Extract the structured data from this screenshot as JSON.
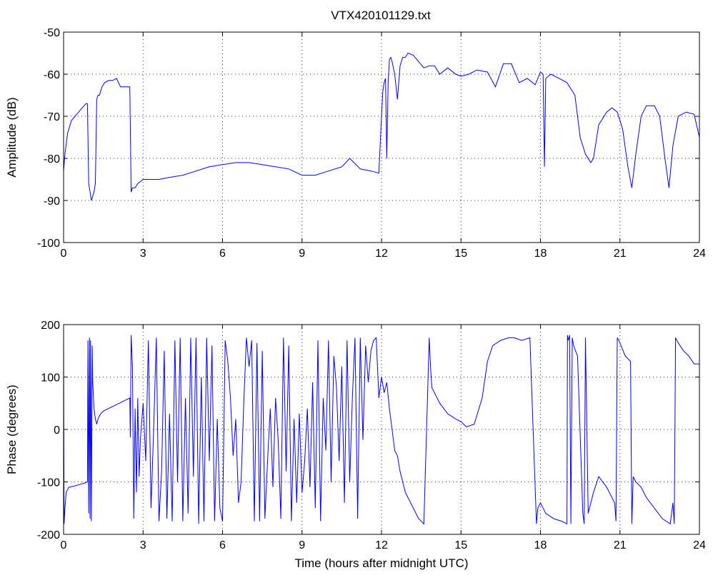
{
  "figure": {
    "title": "VTX420101129.txt"
  },
  "chart_data": [
    {
      "type": "line",
      "title": "VTX420101129.txt",
      "xlabel": "",
      "ylabel": "Amplitude (dB)",
      "xlim": [
        0,
        24
      ],
      "ylim": [
        -100,
        -50
      ],
      "xticks": [
        0,
        3,
        6,
        9,
        12,
        15,
        18,
        21,
        24
      ],
      "yticks": [
        -100,
        -90,
        -80,
        -70,
        -60,
        -50
      ],
      "grid": true,
      "color": "#0000ff",
      "series": [
        {
          "x": [
            0.0,
            0.05,
            0.15,
            0.3,
            0.5,
            0.7,
            0.85,
            0.9,
            0.95,
            1.0,
            1.05,
            1.1,
            1.15,
            1.2,
            1.25,
            1.3,
            1.35,
            1.45,
            1.55,
            1.7,
            1.85,
            2.0,
            2.15,
            2.3,
            2.4,
            2.45,
            2.5,
            2.55,
            2.6,
            2.7,
            2.8,
            3.0,
            3.3,
            3.6,
            4.0,
            4.5,
            5.0,
            5.5,
            6.0,
            6.5,
            7.0,
            7.5,
            8.0,
            8.5,
            9.0,
            9.5,
            10.0,
            10.5,
            10.8,
            11.2,
            11.6,
            11.9,
            12.0,
            12.05,
            12.1,
            12.15,
            12.2,
            12.25,
            12.3,
            12.35,
            12.4,
            12.5,
            12.6,
            12.7,
            12.8,
            12.9,
            13.0,
            13.2,
            13.4,
            13.6,
            13.8,
            14.0,
            14.2,
            14.5,
            14.8,
            15.0,
            15.3,
            15.6,
            16.0,
            16.3,
            16.6,
            16.9,
            17.2,
            17.5,
            17.8,
            18.0,
            18.1,
            18.15,
            18.2,
            18.4,
            18.7,
            19.0,
            19.3,
            19.5,
            19.7,
            19.9,
            20.0,
            20.2,
            20.5,
            20.7,
            20.9,
            21.1,
            21.3,
            21.45,
            21.6,
            21.8,
            22.0,
            22.3,
            22.5,
            22.7,
            22.85,
            23.0,
            23.2,
            23.5,
            23.8,
            24.0
          ],
          "values": [
            -83,
            -79,
            -74,
            -71,
            -69.5,
            -68,
            -67,
            -67,
            -86,
            -88,
            -90,
            -89,
            -88,
            -86,
            -66,
            -65,
            -65,
            -63,
            -62,
            -61.5,
            -61.5,
            -61,
            -63,
            -63,
            -63,
            -63,
            -63,
            -88,
            -87,
            -87,
            -86,
            -85,
            -85,
            -85,
            -84.5,
            -84,
            -83,
            -82,
            -81.5,
            -81,
            -81,
            -81.5,
            -82,
            -82.5,
            -84,
            -84,
            -83,
            -82,
            -80,
            -82.5,
            -83,
            -83.5,
            -70,
            -64,
            -62,
            -61,
            -80,
            -62,
            -56.5,
            -56,
            -57,
            -60,
            -66,
            -58,
            -56,
            -56,
            -55,
            -55.5,
            -57,
            -58.5,
            -58,
            -58,
            -60,
            -58.5,
            -60,
            -60.5,
            -60,
            -59,
            -59.5,
            -63,
            -57.5,
            -57.5,
            -62,
            -61,
            -62.5,
            -59.5,
            -60,
            -82,
            -61,
            -60,
            -61,
            -62,
            -65,
            -75,
            -79,
            -81,
            -80,
            -72,
            -69,
            -68,
            -69,
            -73,
            -82,
            -87,
            -79,
            -70,
            -67.5,
            -67.5,
            -70,
            -80,
            -87,
            -77,
            -70,
            -69,
            -69.5,
            -75
          ]
        }
      ]
    },
    {
      "type": "line",
      "title": "",
      "xlabel": "Time (hours after midnight UTC)",
      "ylabel": "Phase (degrees)",
      "xlim": [
        0,
        24
      ],
      "ylim": [
        -200,
        200
      ],
      "xticks": [
        0,
        3,
        6,
        9,
        12,
        15,
        18,
        21,
        24
      ],
      "yticks": [
        -200,
        -100,
        0,
        100,
        200
      ],
      "grid": true,
      "color": "#0000ff",
      "series": [
        {
          "x": [
            0.0,
            0.02,
            0.05,
            0.1,
            0.2,
            0.4,
            0.6,
            0.8,
            0.9,
            0.92,
            0.95,
            0.98,
            1.0,
            1.02,
            1.05,
            1.08,
            1.1,
            1.15,
            1.2,
            1.25,
            1.3,
            1.35,
            1.4,
            1.5,
            1.7,
            1.9,
            2.1,
            2.3,
            2.5,
            2.52,
            2.55,
            2.6,
            2.65,
            2.7,
            2.75,
            2.8,
            2.85,
            2.9,
            3.0,
            3.1,
            3.2,
            3.3,
            3.4,
            3.5,
            3.6,
            3.7,
            3.8,
            3.9,
            4.0,
            4.1,
            4.2,
            4.3,
            4.4,
            4.5,
            4.6,
            4.7,
            4.8,
            4.9,
            5.0,
            5.1,
            5.2,
            5.3,
            5.4,
            5.5,
            5.6,
            5.7,
            5.8,
            5.9,
            6.0,
            6.1,
            6.2,
            6.3,
            6.4,
            6.5,
            6.6,
            6.7,
            6.8,
            6.9,
            7.0,
            7.1,
            7.2,
            7.3,
            7.4,
            7.5,
            7.6,
            7.7,
            7.8,
            7.9,
            8.0,
            8.1,
            8.2,
            8.3,
            8.4,
            8.5,
            8.6,
            8.7,
            8.8,
            8.9,
            9.0,
            9.1,
            9.2,
            9.3,
            9.4,
            9.5,
            9.6,
            9.7,
            9.8,
            9.9,
            10.0,
            10.1,
            10.2,
            10.3,
            10.4,
            10.5,
            10.6,
            10.7,
            10.8,
            10.9,
            11.0,
            11.1,
            11.2,
            11.3,
            11.4,
            11.5,
            11.6,
            11.7,
            11.8,
            11.9,
            12.0,
            12.1,
            12.2,
            12.3,
            12.4,
            12.5,
            12.6,
            12.7,
            12.8,
            12.9,
            13.0,
            13.2,
            13.4,
            13.6,
            13.8,
            13.85,
            13.9,
            14.2,
            14.5,
            14.8,
            15.0,
            15.2,
            15.5,
            15.8,
            16.0,
            16.2,
            16.5,
            16.8,
            17.0,
            17.3,
            17.6,
            17.85,
            17.9,
            18.0,
            18.2,
            18.5,
            18.8,
            19.0,
            19.02,
            19.05,
            19.1,
            19.15,
            19.2,
            19.25,
            19.4,
            19.6,
            19.65,
            19.7,
            19.8,
            20.0,
            20.2,
            20.5,
            20.8,
            20.85,
            20.9,
            21.0,
            21.2,
            21.4,
            21.45,
            21.5,
            21.6,
            21.8,
            22.0,
            22.3,
            22.6,
            22.9,
            23.0,
            23.05,
            23.1,
            23.2,
            23.4,
            23.6,
            23.8,
            24.0
          ],
          "values": [
            175,
            -180,
            -150,
            -120,
            -110,
            -108,
            -105,
            -102,
            -100,
            170,
            -160,
            175,
            -170,
            170,
            -175,
            160,
            90,
            40,
            20,
            10,
            20,
            25,
            30,
            35,
            40,
            45,
            50,
            55,
            60,
            -15,
            180,
            120,
            -170,
            40,
            -120,
            60,
            -90,
            -20,
            50,
            -60,
            170,
            -150,
            0,
            175,
            -175,
            -80,
            150,
            -170,
            30,
            -175,
            170,
            -100,
            175,
            -175,
            60,
            -160,
            175,
            -90,
            175,
            -180,
            100,
            -175,
            175,
            -60,
            160,
            -175,
            20,
            -150,
            -175,
            170,
            130,
            60,
            -50,
            20,
            -140,
            -100,
            50,
            175,
            120,
            170,
            -175,
            165,
            -175,
            150,
            -170,
            -60,
            40,
            -110,
            60,
            -20,
            -170,
            175,
            -80,
            160,
            -175,
            20,
            -140,
            30,
            -120,
            -60,
            40,
            -110,
            90,
            -150,
            170,
            -175,
            60,
            -40,
            170,
            -100,
            140,
            80,
            -60,
            120,
            -140,
            170,
            -100,
            60,
            175,
            -170,
            175,
            -20,
            160,
            90,
            150,
            170,
            175,
            60,
            100,
            70,
            90,
            40,
            0,
            -40,
            -50,
            -80,
            -100,
            -120,
            -130,
            -150,
            -170,
            -180,
            175,
            120,
            80,
            50,
            30,
            20,
            15,
            5,
            10,
            60,
            130,
            160,
            170,
            175,
            175,
            170,
            175,
            -180,
            -150,
            -140,
            -160,
            -170,
            -175,
            -180,
            180,
            170,
            180,
            -180,
            175,
            160,
            140,
            -160,
            -180,
            175,
            -160,
            -120,
            -90,
            -110,
            -140,
            -175,
            175,
            165,
            140,
            130,
            -180,
            -90,
            -100,
            -110,
            -130,
            -150,
            -170,
            -180,
            -140,
            -180,
            175,
            165,
            150,
            140,
            125,
            125
          ]
        }
      ]
    }
  ]
}
